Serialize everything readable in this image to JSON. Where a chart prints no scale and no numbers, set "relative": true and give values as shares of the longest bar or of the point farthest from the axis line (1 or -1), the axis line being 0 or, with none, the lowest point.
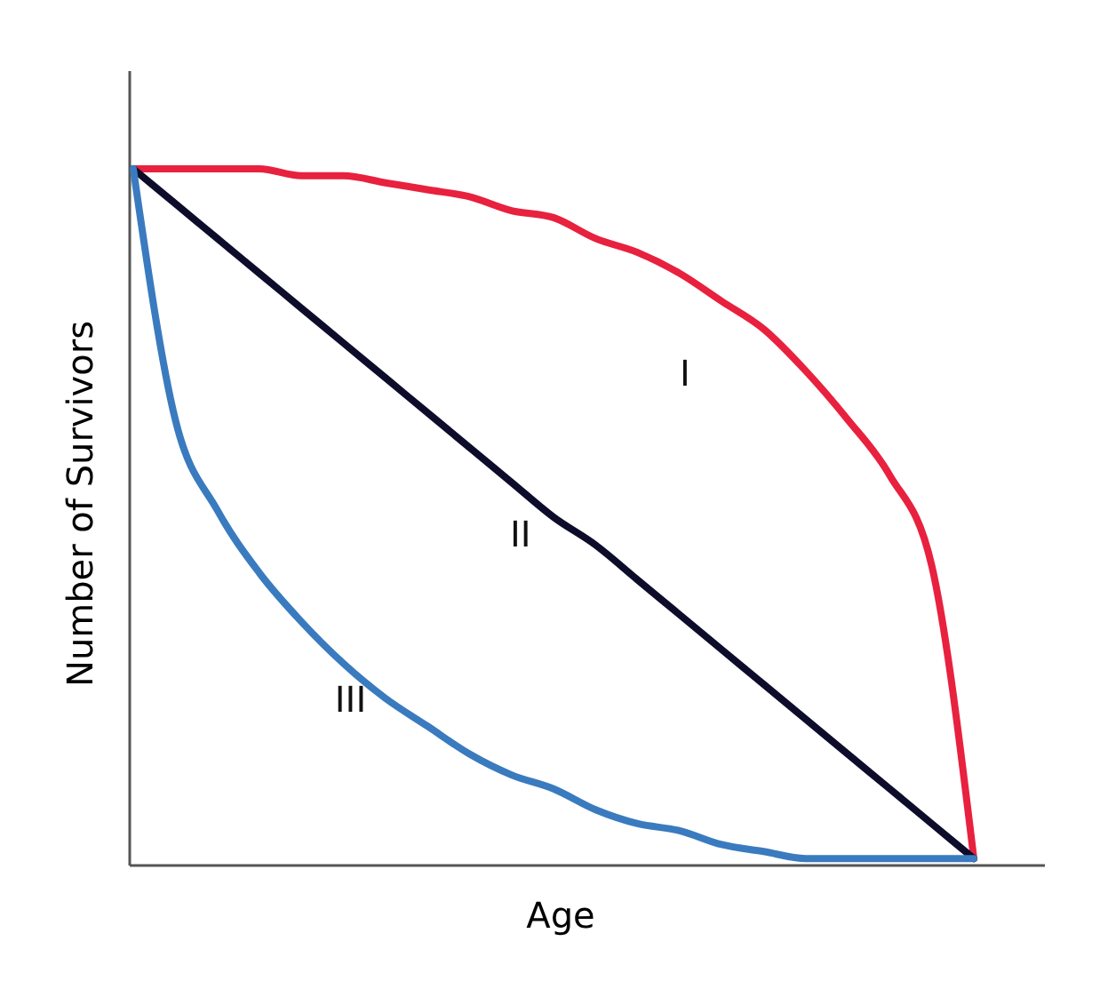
{
  "chart_data": {
    "type": "line",
    "relative": true,
    "xlabel": "Age",
    "ylabel": "Number of Survivors",
    "categories": [
      null,
      null,
      null,
      null,
      null,
      null,
      null,
      null,
      null,
      null,
      null,
      null,
      null,
      null,
      null,
      null,
      null,
      null,
      null,
      null,
      null
    ],
    "series": [
      {
        "name": "I",
        "color": "#e8213f",
        "values": [
          1,
          1,
          1,
          1,
          0.99,
          0.99,
          0.98,
          0.97,
          0.96,
          0.94,
          0.93,
          0.9,
          0.88,
          0.85,
          0.81,
          0.77,
          0.71,
          0.64,
          0.56,
          0.43,
          0.01
        ]
      },
      {
        "name": "II",
        "color": "#0d0d2b",
        "values": [
          1,
          0.95,
          0.9,
          0.85,
          0.8,
          0.75,
          0.7,
          0.65,
          0.6,
          0.55,
          0.5,
          0.46,
          0.41,
          0.36,
          0.31,
          0.26,
          0.21,
          0.16,
          0.11,
          0.06,
          0.01
        ]
      },
      {
        "name": "III",
        "color": "#3a7bbf",
        "values": [
          1,
          0.64,
          0.51,
          0.42,
          0.35,
          0.29,
          0.24,
          0.2,
          0.16,
          0.13,
          0.11,
          0.08,
          0.06,
          0.05,
          0.03,
          0.02,
          0.01,
          0.01,
          0.01,
          0.01,
          0.01
        ]
      }
    ],
    "grid": false,
    "legend": false,
    "marker": "none",
    "line_style": "solid"
  }
}
